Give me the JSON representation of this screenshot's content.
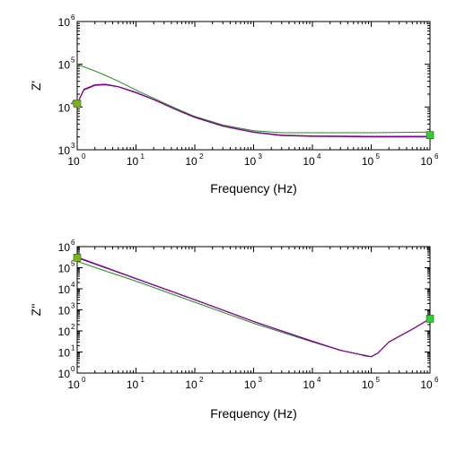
{
  "chart_data": [
    {
      "type": "line",
      "ylabel": "Z'",
      "xlabel": "Frequency (Hz)",
      "xscale": "log",
      "yscale": "log",
      "xlim": [
        1,
        1000000
      ],
      "ylim": [
        1000,
        1000000
      ],
      "x_ticks": [
        {
          "base": "10",
          "exp": "0"
        },
        {
          "base": "10",
          "exp": "1"
        },
        {
          "base": "10",
          "exp": "2"
        },
        {
          "base": "10",
          "exp": "3"
        },
        {
          "base": "10",
          "exp": "4"
        },
        {
          "base": "10",
          "exp": "5"
        },
        {
          "base": "10",
          "exp": "6"
        }
      ],
      "y_ticks": [
        {
          "base": "10",
          "exp": "3"
        },
        {
          "base": "10",
          "exp": "4"
        },
        {
          "base": "10",
          "exp": "5"
        },
        {
          "base": "10",
          "exp": "6"
        }
      ],
      "grid": false,
      "series": [
        {
          "color": "#228B22",
          "style": "line",
          "x": [
            1,
            2,
            3,
            5,
            10,
            20,
            50,
            100,
            300,
            1000,
            3000,
            10000,
            100000,
            1000000
          ],
          "y": [
            100000,
            70000,
            55000,
            40000,
            25000,
            16000,
            9000,
            6000,
            3800,
            2800,
            2500,
            2500,
            2500,
            2600
          ]
        },
        {
          "color": "#0000CC",
          "style": "line",
          "x": [
            1,
            1.3,
            2,
            3,
            5,
            10,
            20,
            50,
            100,
            300,
            1000,
            3000,
            10000,
            100000,
            1000000
          ],
          "y": [
            12000,
            26000,
            33000,
            34000,
            30000,
            22000,
            15000,
            8500,
            5800,
            3600,
            2600,
            2200,
            2100,
            2050,
            2050
          ]
        },
        {
          "color": "#CC0000",
          "style": "dotted",
          "x": [
            1,
            1.3,
            2,
            3,
            5,
            10,
            20,
            50,
            100,
            300,
            1000,
            3000,
            10000,
            100000,
            1000000
          ],
          "y": [
            12000,
            26000,
            33000,
            34000,
            30000,
            22000,
            15000,
            8500,
            5800,
            3600,
            2600,
            2200,
            2100,
            2050,
            2050
          ]
        },
        {
          "color": "#8800AA",
          "style": "line",
          "x": [
            1,
            1.3,
            2,
            3,
            5,
            10,
            20,
            50,
            100,
            300,
            1000,
            3000,
            10000,
            100000,
            1000000
          ],
          "y": [
            12000,
            25000,
            32000,
            33000,
            29500,
            21500,
            14800,
            8400,
            5700,
            3550,
            2550,
            2150,
            2050,
            2000,
            2000
          ]
        }
      ],
      "markers": [
        {
          "x": 1,
          "y": 12000,
          "color": "#7AB51D"
        },
        {
          "x": 1000000,
          "y": 2200,
          "color": "#33CC33"
        }
      ]
    },
    {
      "type": "line",
      "ylabel": "Z''",
      "xlabel": "Frequency (Hz)",
      "xscale": "log",
      "yscale": "log",
      "xlim": [
        1,
        1000000
      ],
      "ylim": [
        1,
        1000000
      ],
      "x_ticks": [
        {
          "base": "10",
          "exp": "0"
        },
        {
          "base": "10",
          "exp": "1"
        },
        {
          "base": "10",
          "exp": "2"
        },
        {
          "base": "10",
          "exp": "3"
        },
        {
          "base": "10",
          "exp": "4"
        },
        {
          "base": "10",
          "exp": "5"
        },
        {
          "base": "10",
          "exp": "6"
        }
      ],
      "y_ticks": [
        {
          "base": "10",
          "exp": "0"
        },
        {
          "base": "10",
          "exp": "1"
        },
        {
          "base": "10",
          "exp": "2"
        },
        {
          "base": "10",
          "exp": "3"
        },
        {
          "base": "10",
          "exp": "4"
        },
        {
          "base": "10",
          "exp": "5"
        },
        {
          "base": "10",
          "exp": "6"
        }
      ],
      "grid": false,
      "series": [
        {
          "color": "#228B22",
          "style": "line",
          "x": [
            1,
            3,
            10,
            100,
            1000,
            10000,
            30000,
            60000,
            80000,
            100000,
            130000,
            200000,
            500000,
            1000000
          ],
          "y": [
            200000,
            70000,
            23000,
            2300,
            230,
            30,
            12,
            8,
            7,
            6,
            9,
            30,
            120,
            380
          ]
        },
        {
          "color": "#0000CC",
          "style": "line",
          "x": [
            1,
            3,
            10,
            100,
            1000,
            10000,
            30000,
            60000,
            80000,
            100000,
            130000,
            200000,
            500000,
            1000000
          ],
          "y": [
            300000,
            100000,
            30000,
            3000,
            280,
            32,
            12,
            8,
            6.5,
            6,
            9,
            30,
            120,
            380
          ]
        },
        {
          "color": "#CC0000",
          "style": "dotted",
          "x": [
            1,
            3,
            10,
            100,
            1000,
            10000,
            30000,
            60000,
            80000,
            100000,
            130000,
            200000,
            500000,
            1000000
          ],
          "y": [
            300000,
            100000,
            30000,
            3000,
            280,
            32,
            12,
            8,
            6.5,
            6,
            9,
            30,
            120,
            380
          ]
        },
        {
          "color": "#8800AA",
          "style": "line",
          "x": [
            1,
            3,
            10,
            100,
            1000,
            10000,
            30000,
            60000,
            80000,
            100000,
            130000,
            200000,
            500000,
            1000000
          ],
          "y": [
            320000,
            105000,
            31000,
            3050,
            285,
            33,
            12,
            8,
            6.5,
            6,
            9,
            30,
            120,
            380
          ]
        }
      ],
      "markers": [
        {
          "x": 1,
          "y": 300000,
          "color": "#7AB51D"
        },
        {
          "x": 1000000,
          "y": 380,
          "color": "#33CC33"
        }
      ]
    }
  ]
}
